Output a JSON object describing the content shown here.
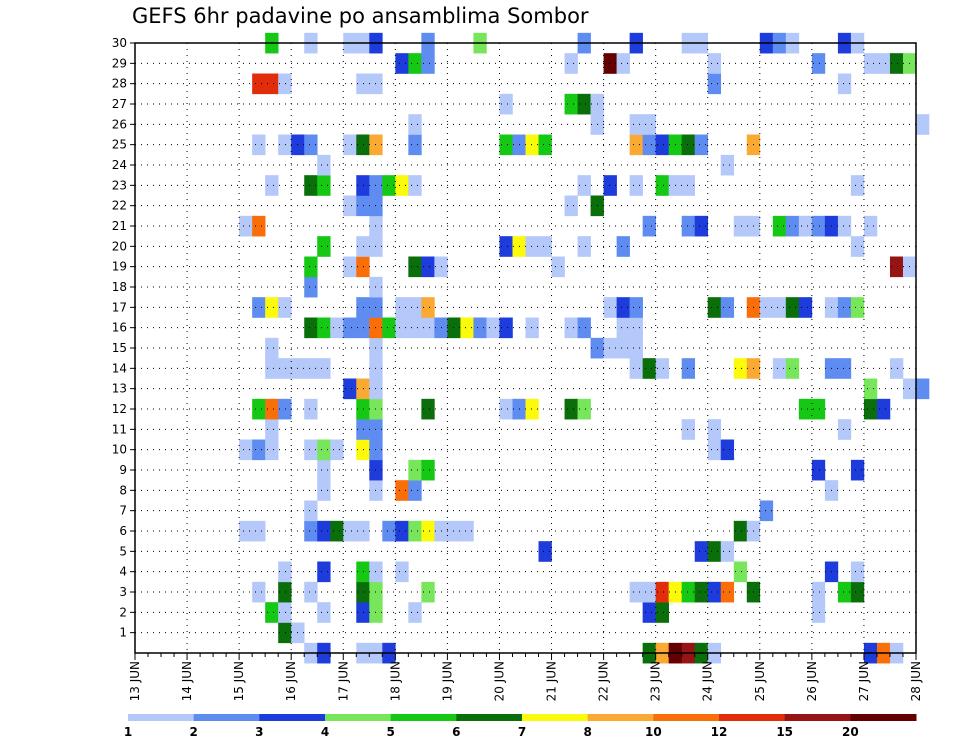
{
  "chart_data": {
    "type": "heatmap",
    "title": "GEFS 6hr padavine po ansamblima Sombor",
    "xlabel": "",
    "ylabel": "",
    "x_tick_labels": [
      "13 JUN",
      "14 JUN",
      "15 JUN",
      "16 JUN",
      "17 JUN",
      "18 JUN",
      "19 JUN",
      "20 JUN",
      "21 JUN",
      "22 JUN",
      "23 JUN",
      "24 JUN",
      "25 JUN",
      "26 JUN",
      "27 JUN",
      "28 JUN"
    ],
    "x_range_steps": [
      0,
      60
    ],
    "y_tick_labels": [
      "1",
      "2",
      "3",
      "4",
      "5",
      "6",
      "7",
      "8",
      "9",
      "10",
      "11",
      "12",
      "13",
      "14",
      "15",
      "16",
      "17",
      "18",
      "19",
      "20",
      "21",
      "22",
      "23",
      "24",
      "25",
      "26",
      "27",
      "28",
      "29",
      "30"
    ],
    "y_range": [
      0,
      30
    ],
    "grid": true,
    "colorbar": {
      "levels": [
        "1",
        "2",
        "3",
        "4",
        "5",
        "6",
        "7",
        "8",
        "10",
        "12",
        "15",
        "20"
      ],
      "colors": [
        "#b4c8fa",
        "#5f8cf0",
        "#1e3cdc",
        "#78e65a",
        "#14c814",
        "#0a6e0a",
        "#fafa0a",
        "#faaa32",
        "#fa6e0a",
        "#e12d0a",
        "#961414",
        "#640000"
      ]
    },
    "cell_color_index_note": "cells: [time_step(6h steps from 13 JUN 00Z), member(0-30), color index into colorbar.colors]",
    "cells": [
      [
        13,
        0,
        0
      ],
      [
        14,
        0,
        2
      ],
      [
        17,
        0,
        0
      ],
      [
        18,
        0,
        0
      ],
      [
        19,
        0,
        2
      ],
      [
        39,
        0,
        5
      ],
      [
        40,
        0,
        7
      ],
      [
        41,
        0,
        11
      ],
      [
        42,
        0,
        10
      ],
      [
        43,
        0,
        5
      ],
      [
        44,
        0,
        0
      ],
      [
        56,
        0,
        2
      ],
      [
        57,
        0,
        8
      ],
      [
        58,
        0,
        0
      ],
      [
        11,
        1,
        5
      ],
      [
        12,
        1,
        0
      ],
      [
        10,
        2,
        4
      ],
      [
        11,
        2,
        0
      ],
      [
        14,
        2,
        0
      ],
      [
        17,
        2,
        2
      ],
      [
        18,
        2,
        3
      ],
      [
        21,
        2,
        0
      ],
      [
        39,
        2,
        2
      ],
      [
        40,
        2,
        5
      ],
      [
        52,
        2,
        0
      ],
      [
        9,
        3,
        0
      ],
      [
        11,
        3,
        5
      ],
      [
        13,
        3,
        0
      ],
      [
        17,
        3,
        5
      ],
      [
        18,
        3,
        3
      ],
      [
        22,
        3,
        3
      ],
      [
        38,
        3,
        0
      ],
      [
        39,
        3,
        0
      ],
      [
        40,
        3,
        9
      ],
      [
        41,
        3,
        6
      ],
      [
        42,
        3,
        4
      ],
      [
        43,
        3,
        5
      ],
      [
        44,
        3,
        2
      ],
      [
        45,
        3,
        8
      ],
      [
        47,
        3,
        5
      ],
      [
        52,
        3,
        0
      ],
      [
        54,
        3,
        4
      ],
      [
        55,
        3,
        5
      ],
      [
        11,
        4,
        0
      ],
      [
        14,
        4,
        2
      ],
      [
        17,
        4,
        4
      ],
      [
        18,
        4,
        0
      ],
      [
        20,
        4,
        0
      ],
      [
        46,
        4,
        3
      ],
      [
        53,
        4,
        2
      ],
      [
        55,
        4,
        0
      ],
      [
        43,
        5,
        2
      ],
      [
        44,
        5,
        5
      ],
      [
        45,
        5,
        0
      ],
      [
        31,
        5,
        2
      ],
      [
        8,
        6,
        0
      ],
      [
        9,
        6,
        0
      ],
      [
        13,
        6,
        1
      ],
      [
        14,
        6,
        2
      ],
      [
        15,
        6,
        5
      ],
      [
        16,
        6,
        0
      ],
      [
        17,
        6,
        0
      ],
      [
        19,
        6,
        1
      ],
      [
        20,
        6,
        2
      ],
      [
        21,
        6,
        3
      ],
      [
        22,
        6,
        6
      ],
      [
        23,
        6,
        0
      ],
      [
        24,
        6,
        0
      ],
      [
        25,
        6,
        0
      ],
      [
        46,
        6,
        5
      ],
      [
        47,
        6,
        0
      ],
      [
        13,
        7,
        0
      ],
      [
        48,
        7,
        1
      ],
      [
        20,
        8,
        8
      ],
      [
        21,
        8,
        1
      ],
      [
        14,
        8,
        0
      ],
      [
        18,
        8,
        0
      ],
      [
        53,
        8,
        0
      ],
      [
        14,
        9,
        0
      ],
      [
        18,
        9,
        2
      ],
      [
        21,
        9,
        3
      ],
      [
        22,
        9,
        4
      ],
      [
        52,
        9,
        2
      ],
      [
        55,
        9,
        2
      ],
      [
        8,
        10,
        0
      ],
      [
        9,
        10,
        1
      ],
      [
        10,
        10,
        0
      ],
      [
        13,
        10,
        0
      ],
      [
        14,
        10,
        3
      ],
      [
        15,
        10,
        0
      ],
      [
        17,
        10,
        6
      ],
      [
        18,
        10,
        1
      ],
      [
        44,
        10,
        0
      ],
      [
        45,
        10,
        2
      ],
      [
        10,
        11,
        0
      ],
      [
        17,
        11,
        1
      ],
      [
        18,
        11,
        1
      ],
      [
        42,
        11,
        0
      ],
      [
        44,
        11,
        0
      ],
      [
        54,
        11,
        0
      ],
      [
        9,
        12,
        4
      ],
      [
        10,
        12,
        8
      ],
      [
        11,
        12,
        1
      ],
      [
        13,
        12,
        0
      ],
      [
        17,
        12,
        4
      ],
      [
        18,
        12,
        3
      ],
      [
        22,
        12,
        5
      ],
      [
        28,
        12,
        0
      ],
      [
        29,
        12,
        1
      ],
      [
        30,
        12,
        6
      ],
      [
        33,
        12,
        5
      ],
      [
        34,
        12,
        3
      ],
      [
        51,
        12,
        4
      ],
      [
        52,
        12,
        4
      ],
      [
        56,
        12,
        5
      ],
      [
        57,
        12,
        2
      ],
      [
        16,
        13,
        2
      ],
      [
        17,
        13,
        7
      ],
      [
        18,
        13,
        0
      ],
      [
        56,
        13,
        3
      ],
      [
        59,
        13,
        0
      ],
      [
        60,
        13,
        1
      ],
      [
        10,
        14,
        0
      ],
      [
        11,
        14,
        0
      ],
      [
        12,
        14,
        0
      ],
      [
        13,
        14,
        0
      ],
      [
        14,
        14,
        0
      ],
      [
        18,
        14,
        0
      ],
      [
        38,
        14,
        0
      ],
      [
        39,
        14,
        5
      ],
      [
        40,
        14,
        0
      ],
      [
        42,
        14,
        1
      ],
      [
        46,
        14,
        6
      ],
      [
        47,
        14,
        7
      ],
      [
        49,
        14,
        0
      ],
      [
        50,
        14,
        3
      ],
      [
        53,
        14,
        1
      ],
      [
        54,
        14,
        1
      ],
      [
        58,
        14,
        0
      ],
      [
        10,
        15,
        0
      ],
      [
        18,
        15,
        0
      ],
      [
        35,
        15,
        1
      ],
      [
        36,
        15,
        0
      ],
      [
        37,
        15,
        0
      ],
      [
        38,
        15,
        0
      ],
      [
        13,
        16,
        5
      ],
      [
        14,
        16,
        4
      ],
      [
        15,
        16,
        0
      ],
      [
        16,
        16,
        1
      ],
      [
        17,
        16,
        1
      ],
      [
        18,
        16,
        8
      ],
      [
        19,
        16,
        4
      ],
      [
        20,
        16,
        0
      ],
      [
        21,
        16,
        0
      ],
      [
        22,
        16,
        0
      ],
      [
        23,
        16,
        1
      ],
      [
        24,
        16,
        5
      ],
      [
        25,
        16,
        6
      ],
      [
        26,
        16,
        1
      ],
      [
        27,
        16,
        0
      ],
      [
        28,
        16,
        2
      ],
      [
        30,
        16,
        0
      ],
      [
        33,
        16,
        0
      ],
      [
        34,
        16,
        1
      ],
      [
        37,
        16,
        0
      ],
      [
        38,
        16,
        0
      ],
      [
        9,
        17,
        1
      ],
      [
        10,
        17,
        6
      ],
      [
        11,
        17,
        0
      ],
      [
        17,
        17,
        1
      ],
      [
        18,
        17,
        1
      ],
      [
        20,
        17,
        0
      ],
      [
        21,
        17,
        0
      ],
      [
        22,
        17,
        7
      ],
      [
        36,
        17,
        0
      ],
      [
        37,
        17,
        2
      ],
      [
        38,
        17,
        1
      ],
      [
        44,
        17,
        5
      ],
      [
        45,
        17,
        1
      ],
      [
        47,
        17,
        8
      ],
      [
        48,
        17,
        0
      ],
      [
        49,
        17,
        0
      ],
      [
        50,
        17,
        5
      ],
      [
        51,
        17,
        2
      ],
      [
        53,
        17,
        0
      ],
      [
        54,
        17,
        1
      ],
      [
        55,
        17,
        3
      ],
      [
        13,
        18,
        1
      ],
      [
        18,
        18,
        0
      ],
      [
        13,
        19,
        4
      ],
      [
        16,
        19,
        0
      ],
      [
        17,
        19,
        8
      ],
      [
        21,
        19,
        5
      ],
      [
        22,
        19,
        2
      ],
      [
        23,
        19,
        0
      ],
      [
        32,
        19,
        0
      ],
      [
        58,
        19,
        10
      ],
      [
        59,
        19,
        0
      ],
      [
        14,
        20,
        4
      ],
      [
        17,
        20,
        0
      ],
      [
        18,
        20,
        0
      ],
      [
        28,
        20,
        2
      ],
      [
        29,
        20,
        6
      ],
      [
        30,
        20,
        0
      ],
      [
        31,
        20,
        0
      ],
      [
        34,
        20,
        0
      ],
      [
        37,
        20,
        1
      ],
      [
        55,
        20,
        0
      ],
      [
        8,
        21,
        0
      ],
      [
        9,
        21,
        8
      ],
      [
        18,
        21,
        0
      ],
      [
        39,
        21,
        1
      ],
      [
        42,
        21,
        1
      ],
      [
        43,
        21,
        2
      ],
      [
        46,
        21,
        0
      ],
      [
        47,
        21,
        0
      ],
      [
        49,
        21,
        4
      ],
      [
        50,
        21,
        1
      ],
      [
        51,
        21,
        0
      ],
      [
        52,
        21,
        1
      ],
      [
        53,
        21,
        2
      ],
      [
        54,
        21,
        0
      ],
      [
        56,
        21,
        0
      ],
      [
        16,
        22,
        0
      ],
      [
        17,
        22,
        1
      ],
      [
        18,
        22,
        1
      ],
      [
        33,
        22,
        0
      ],
      [
        35,
        22,
        5
      ],
      [
        10,
        23,
        0
      ],
      [
        13,
        23,
        5
      ],
      [
        14,
        23,
        4
      ],
      [
        17,
        23,
        2
      ],
      [
        18,
        23,
        1
      ],
      [
        19,
        23,
        4
      ],
      [
        20,
        23,
        6
      ],
      [
        21,
        23,
        0
      ],
      [
        34,
        23,
        0
      ],
      [
        36,
        23,
        2
      ],
      [
        38,
        23,
        0
      ],
      [
        40,
        23,
        4
      ],
      [
        41,
        23,
        0
      ],
      [
        42,
        23,
        0
      ],
      [
        55,
        23,
        0
      ],
      [
        14,
        24,
        0
      ],
      [
        45,
        24,
        0
      ],
      [
        9,
        25,
        0
      ],
      [
        11,
        25,
        0
      ],
      [
        12,
        25,
        2
      ],
      [
        13,
        25,
        1
      ],
      [
        16,
        25,
        0
      ],
      [
        17,
        25,
        5
      ],
      [
        18,
        25,
        7
      ],
      [
        21,
        25,
        1
      ],
      [
        28,
        25,
        4
      ],
      [
        29,
        25,
        1
      ],
      [
        30,
        25,
        6
      ],
      [
        31,
        25,
        4
      ],
      [
        38,
        25,
        7
      ],
      [
        39,
        25,
        1
      ],
      [
        40,
        25,
        2
      ],
      [
        41,
        25,
        4
      ],
      [
        42,
        25,
        5
      ],
      [
        43,
        25,
        1
      ],
      [
        47,
        25,
        7
      ],
      [
        21,
        26,
        0
      ],
      [
        35,
        26,
        0
      ],
      [
        38,
        26,
        0
      ],
      [
        39,
        26,
        0
      ],
      [
        60,
        26,
        0
      ],
      [
        28,
        27,
        0
      ],
      [
        33,
        27,
        4
      ],
      [
        34,
        27,
        5
      ],
      [
        35,
        27,
        0
      ],
      [
        9,
        28,
        9
      ],
      [
        10,
        28,
        9
      ],
      [
        11,
        28,
        0
      ],
      [
        17,
        28,
        0
      ],
      [
        18,
        28,
        0
      ],
      [
        44,
        28,
        1
      ],
      [
        54,
        28,
        0
      ],
      [
        20,
        29,
        2
      ],
      [
        21,
        29,
        4
      ],
      [
        22,
        29,
        1
      ],
      [
        33,
        29,
        0
      ],
      [
        36,
        29,
        11
      ],
      [
        37,
        29,
        0
      ],
      [
        44,
        29,
        0
      ],
      [
        52,
        29,
        1
      ],
      [
        56,
        29,
        0
      ],
      [
        57,
        29,
        0
      ],
      [
        58,
        29,
        5
      ],
      [
        59,
        29,
        3
      ],
      [
        10,
        30,
        4
      ],
      [
        13,
        30,
        0
      ],
      [
        16,
        30,
        0
      ],
      [
        17,
        30,
        0
      ],
      [
        18,
        30,
        2
      ],
      [
        22,
        30,
        1
      ],
      [
        26,
        30,
        3
      ],
      [
        34,
        30,
        1
      ],
      [
        38,
        30,
        2
      ],
      [
        42,
        30,
        0
      ],
      [
        43,
        30,
        0
      ],
      [
        48,
        30,
        2
      ],
      [
        49,
        30,
        1
      ],
      [
        50,
        30,
        0
      ],
      [
        54,
        30,
        2
      ],
      [
        55,
        30,
        0
      ]
    ]
  }
}
